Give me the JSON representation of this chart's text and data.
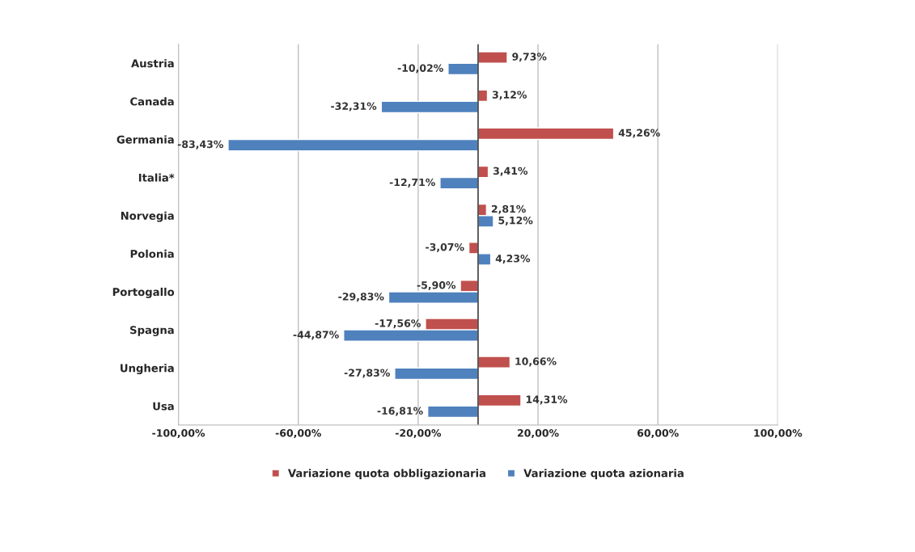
{
  "chart_data": {
    "type": "bar",
    "orientation": "horizontal",
    "categories": [
      "Austria",
      "Canada",
      "Germania",
      "Italia*",
      "Norvegia",
      "Polonia",
      "Portogallo",
      "Spagna",
      "Ungheria",
      "Usa"
    ],
    "series": [
      {
        "name": "Variazione quota obbligazionaria",
        "color": "#c0504d",
        "values": [
          9.73,
          3.12,
          45.26,
          3.41,
          2.81,
          -3.07,
          -5.9,
          -17.56,
          10.66,
          14.31
        ],
        "value_labels": [
          "9,73%",
          "3,12%",
          "45,26%",
          "3,41%",
          "2,81%",
          "-3,07%",
          "-5,90%",
          "-17,56%",
          "10,66%",
          "14,31%"
        ]
      },
      {
        "name": "Variazione quota azionaria",
        "color": "#4f81bd",
        "values": [
          -10.02,
          -32.31,
          -83.43,
          -12.71,
          5.12,
          4.23,
          -29.83,
          -44.87,
          -27.83,
          -16.81
        ],
        "value_labels": [
          "-10,02%",
          "-32,31%",
          "-83,43%",
          "-12,71%",
          "5,12%",
          "4,23%",
          "-29,83%",
          "-44,87%",
          "-27,83%",
          "-16,81%"
        ]
      }
    ],
    "xlim": [
      -100,
      100
    ],
    "xticks": [
      {
        "value": -100,
        "label": "-100,00%"
      },
      {
        "value": -60,
        "label": "-60,00%"
      },
      {
        "value": -20,
        "label": "-20,00%"
      },
      {
        "value": 20,
        "label": "20,00%"
      },
      {
        "value": 60,
        "label": "60,00%"
      },
      {
        "value": 100,
        "label": "100,00%"
      }
    ],
    "ref_lines": [
      {
        "axis": "x",
        "value": 0
      }
    ],
    "grid": "x",
    "legend": "bottom"
  }
}
